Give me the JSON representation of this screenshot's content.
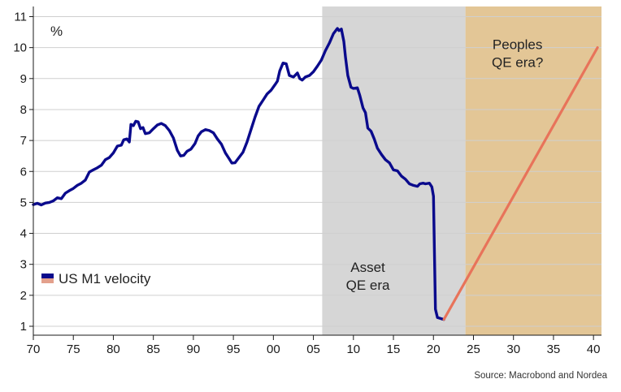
{
  "chart_data": {
    "type": "line",
    "unit_label": "%",
    "source": "Source: Macrobond and Nordea",
    "xlim": [
      1970,
      2041
    ],
    "ylim": [
      1,
      11
    ],
    "grid": "horizontal",
    "legend_position": "bottom-left",
    "x_ticks": [
      {
        "value": 1970,
        "label": "70"
      },
      {
        "value": 1975,
        "label": "75"
      },
      {
        "value": 1980,
        "label": "80"
      },
      {
        "value": 1985,
        "label": "85"
      },
      {
        "value": 1990,
        "label": "90"
      },
      {
        "value": 1995,
        "label": "95"
      },
      {
        "value": 2000,
        "label": "00"
      },
      {
        "value": 2005,
        "label": "05"
      },
      {
        "value": 2010,
        "label": "10"
      },
      {
        "value": 2015,
        "label": "15"
      },
      {
        "value": 2020,
        "label": "20"
      },
      {
        "value": 2025,
        "label": "25"
      },
      {
        "value": 2030,
        "label": "30"
      },
      {
        "value": 2035,
        "label": "35"
      },
      {
        "value": 2040,
        "label": "40"
      }
    ],
    "y_ticks": [
      {
        "value": 1,
        "label": "1"
      },
      {
        "value": 2,
        "label": "2"
      },
      {
        "value": 3,
        "label": "3"
      },
      {
        "value": 4,
        "label": "4"
      },
      {
        "value": 5,
        "label": "5"
      },
      {
        "value": 6,
        "label": "6"
      },
      {
        "value": 7,
        "label": "7"
      },
      {
        "value": 8,
        "label": "8"
      },
      {
        "value": 9,
        "label": "9"
      },
      {
        "value": 10,
        "label": "10"
      },
      {
        "value": 11,
        "label": "11"
      }
    ],
    "regions": [
      {
        "x_from": 2006.1,
        "x_to": 2024.0,
        "color": "#d6d6d6",
        "label_lines": [
          "Asset",
          "QE era"
        ],
        "label_x": 2011.8,
        "label_y": 2.75
      },
      {
        "x_from": 2024.0,
        "x_to": 2041.0,
        "color": "#e3c696",
        "label_lines": [
          "Peoples",
          "QE era?"
        ],
        "label_x": 2030.5,
        "label_y": 9.95
      }
    ],
    "series": [
      {
        "name": "US M1 velocity",
        "color": "#0a0a8c",
        "points": [
          [
            1970.0,
            4.93
          ],
          [
            1970.5,
            4.97
          ],
          [
            1971.0,
            4.92
          ],
          [
            1971.5,
            4.98
          ],
          [
            1972.0,
            5.0
          ],
          [
            1972.5,
            5.05
          ],
          [
            1973.0,
            5.15
          ],
          [
            1973.5,
            5.12
          ],
          [
            1974.0,
            5.3
          ],
          [
            1974.5,
            5.38
          ],
          [
            1975.0,
            5.45
          ],
          [
            1975.5,
            5.55
          ],
          [
            1976.0,
            5.62
          ],
          [
            1976.5,
            5.72
          ],
          [
            1977.0,
            5.98
          ],
          [
            1977.5,
            6.05
          ],
          [
            1978.0,
            6.12
          ],
          [
            1978.5,
            6.2
          ],
          [
            1979.0,
            6.38
          ],
          [
            1979.5,
            6.45
          ],
          [
            1980.0,
            6.6
          ],
          [
            1980.5,
            6.82
          ],
          [
            1981.0,
            6.85
          ],
          [
            1981.3,
            7.02
          ],
          [
            1981.7,
            7.05
          ],
          [
            1982.0,
            6.95
          ],
          [
            1982.2,
            7.52
          ],
          [
            1982.5,
            7.48
          ],
          [
            1982.8,
            7.62
          ],
          [
            1983.1,
            7.6
          ],
          [
            1983.4,
            7.38
          ],
          [
            1983.7,
            7.42
          ],
          [
            1984.0,
            7.22
          ],
          [
            1984.5,
            7.25
          ],
          [
            1985.0,
            7.38
          ],
          [
            1985.5,
            7.5
          ],
          [
            1986.0,
            7.55
          ],
          [
            1986.5,
            7.48
          ],
          [
            1987.0,
            7.32
          ],
          [
            1987.5,
            7.08
          ],
          [
            1988.0,
            6.68
          ],
          [
            1988.4,
            6.5
          ],
          [
            1988.8,
            6.52
          ],
          [
            1989.2,
            6.65
          ],
          [
            1989.7,
            6.72
          ],
          [
            1990.2,
            6.9
          ],
          [
            1990.6,
            7.15
          ],
          [
            1991.0,
            7.28
          ],
          [
            1991.5,
            7.35
          ],
          [
            1992.0,
            7.32
          ],
          [
            1992.5,
            7.25
          ],
          [
            1993.0,
            7.05
          ],
          [
            1993.5,
            6.88
          ],
          [
            1994.0,
            6.6
          ],
          [
            1994.5,
            6.4
          ],
          [
            1994.8,
            6.27
          ],
          [
            1995.2,
            6.28
          ],
          [
            1995.7,
            6.45
          ],
          [
            1996.2,
            6.62
          ],
          [
            1996.7,
            6.95
          ],
          [
            1997.2,
            7.35
          ],
          [
            1997.7,
            7.75
          ],
          [
            1998.2,
            8.1
          ],
          [
            1998.7,
            8.3
          ],
          [
            1999.2,
            8.5
          ],
          [
            1999.7,
            8.62
          ],
          [
            2000.2,
            8.8
          ],
          [
            2000.5,
            8.92
          ],
          [
            2000.8,
            9.25
          ],
          [
            2001.2,
            9.5
          ],
          [
            2001.6,
            9.48
          ],
          [
            2002.0,
            9.1
          ],
          [
            2002.5,
            9.05
          ],
          [
            2003.0,
            9.18
          ],
          [
            2003.3,
            9.0
          ],
          [
            2003.6,
            8.95
          ],
          [
            2004.0,
            9.05
          ],
          [
            2004.5,
            9.1
          ],
          [
            2005.0,
            9.22
          ],
          [
            2005.5,
            9.4
          ],
          [
            2006.0,
            9.6
          ],
          [
            2006.5,
            9.9
          ],
          [
            2007.0,
            10.15
          ],
          [
            2007.5,
            10.45
          ],
          [
            2008.0,
            10.62
          ],
          [
            2008.2,
            10.55
          ],
          [
            2008.5,
            10.6
          ],
          [
            2008.8,
            10.2
          ],
          [
            2009.0,
            9.7
          ],
          [
            2009.3,
            9.1
          ],
          [
            2009.7,
            8.72
          ],
          [
            2010.0,
            8.68
          ],
          [
            2010.5,
            8.7
          ],
          [
            2010.8,
            8.45
          ],
          [
            2011.2,
            8.05
          ],
          [
            2011.5,
            7.9
          ],
          [
            2011.8,
            7.4
          ],
          [
            2012.2,
            7.3
          ],
          [
            2012.6,
            7.05
          ],
          [
            2013.0,
            6.75
          ],
          [
            2013.5,
            6.55
          ],
          [
            2014.0,
            6.38
          ],
          [
            2014.5,
            6.28
          ],
          [
            2015.0,
            6.05
          ],
          [
            2015.5,
            6.02
          ],
          [
            2016.0,
            5.85
          ],
          [
            2016.5,
            5.75
          ],
          [
            2017.0,
            5.6
          ],
          [
            2017.5,
            5.55
          ],
          [
            2018.0,
            5.52
          ],
          [
            2018.3,
            5.6
          ],
          [
            2018.7,
            5.62
          ],
          [
            2019.0,
            5.6
          ],
          [
            2019.5,
            5.62
          ],
          [
            2019.8,
            5.5
          ],
          [
            2020.0,
            5.2
          ],
          [
            2020.12,
            3.5
          ],
          [
            2020.25,
            1.55
          ],
          [
            2020.5,
            1.28
          ],
          [
            2021.0,
            1.24
          ],
          [
            2021.3,
            1.22
          ]
        ]
      },
      {
        "name": "",
        "color": "#e8735a",
        "points": [
          [
            2021.3,
            1.22
          ],
          [
            2040.5,
            10.0
          ]
        ]
      }
    ]
  }
}
